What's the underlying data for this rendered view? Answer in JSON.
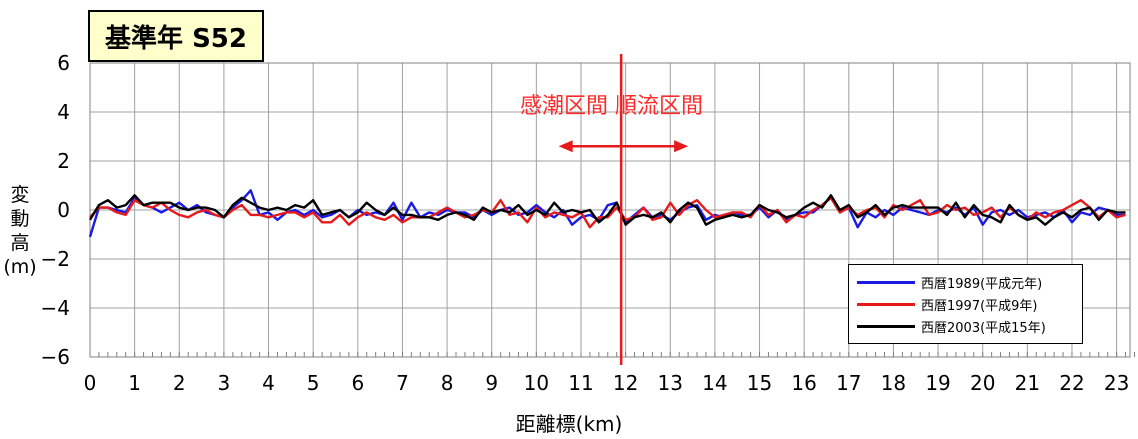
{
  "title": "基準年 S52",
  "annotation": "感潮区間 順流区間",
  "colors": {
    "series1": "#1a1ae6",
    "series2": "#e61a1a",
    "series3": "#000000",
    "divider": "#e61a1a",
    "annotation": "#ff2b2b",
    "title_bg": "#ffffcc"
  },
  "chart_data": {
    "type": "line",
    "title": "基準年 S52",
    "xlabel": "距離標(km)",
    "ylabel": "変動高(m)",
    "ylabel_parts": [
      "変",
      "動",
      "高",
      "(m)"
    ],
    "xlim": [
      0,
      23.3
    ],
    "ylim": [
      -6,
      6
    ],
    "xticks": [
      0,
      1,
      2,
      3,
      4,
      5,
      6,
      7,
      8,
      9,
      10,
      11,
      12,
      13,
      14,
      15,
      16,
      17,
      18,
      19,
      20,
      21,
      22,
      23
    ],
    "yticks": [
      6,
      4,
      2,
      0,
      -2,
      -4,
      -6
    ],
    "ytick_labels": [
      "6",
      "4",
      "2",
      "0",
      "−2",
      "−4",
      "−6"
    ],
    "grid": true,
    "legend_position": "bottom-right",
    "divider_x": 11.9,
    "arrow": {
      "x_from": 10.5,
      "x_to": 13.4,
      "y": 2.6
    },
    "x": [
      0,
      0.2,
      0.4,
      0.6,
      0.8,
      1,
      1.2,
      1.4,
      1.6,
      1.8,
      2,
      2.2,
      2.4,
      2.6,
      2.8,
      3,
      3.2,
      3.4,
      3.6,
      3.8,
      4,
      4.2,
      4.4,
      4.6,
      4.8,
      5,
      5.2,
      5.4,
      5.6,
      5.8,
      6,
      6.2,
      6.4,
      6.6,
      6.8,
      7,
      7.2,
      7.4,
      7.6,
      7.8,
      8,
      8.2,
      8.4,
      8.6,
      8.8,
      9,
      9.2,
      9.4,
      9.6,
      9.8,
      10,
      10.2,
      10.4,
      10.6,
      10.8,
      11,
      11.2,
      11.4,
      11.6,
      11.8,
      12,
      12.2,
      12.4,
      12.6,
      12.8,
      13,
      13.2,
      13.4,
      13.6,
      13.8,
      14,
      14.2,
      14.4,
      14.6,
      14.8,
      15,
      15.2,
      15.4,
      15.6,
      15.8,
      16,
      16.2,
      16.4,
      16.6,
      16.8,
      17,
      17.2,
      17.4,
      17.6,
      17.8,
      18,
      18.2,
      18.4,
      18.6,
      18.8,
      19,
      19.2,
      19.4,
      19.6,
      19.8,
      20,
      20.2,
      20.4,
      20.6,
      20.8,
      21,
      21.2,
      21.4,
      21.6,
      21.8,
      22,
      22.2,
      22.4,
      22.6,
      22.8,
      23,
      23.2
    ],
    "series": [
      {
        "name": "西暦1989(平成元年)",
        "color": "#1a1ae6",
        "values": [
          -1.1,
          0.1,
          0.1,
          0,
          -0.1,
          0.5,
          0.2,
          0.1,
          -0.1,
          0.1,
          0.3,
          0,
          0.2,
          -0.1,
          -0.2,
          -0.3,
          0.1,
          0.4,
          0.8,
          -0.2,
          -0.1,
          -0.4,
          -0.1,
          0,
          -0.2,
          0,
          -0.3,
          -0.2,
          0,
          -0.3,
          0,
          -0.2,
          -0.1,
          -0.2,
          0.3,
          -0.4,
          0.3,
          -0.3,
          -0.1,
          -0.2,
          0,
          -0.1,
          -0.1,
          -0.3,
          0,
          -0.2,
          0,
          0.1,
          -0.2,
          -0.1,
          0.2,
          -0.1,
          -0.3,
          0,
          -0.6,
          -0.3,
          -0.2,
          -0.4,
          0.2,
          0.3,
          -0.5,
          -0.2,
          0.1,
          -0.3,
          -0.2,
          -0.4,
          -0.1,
          0.1,
          0.2,
          -0.4,
          -0.2,
          -0.3,
          -0.1,
          -0.2,
          -0.2,
          0.1,
          -0.3,
          0,
          -0.4,
          -0.2,
          -0.1,
          -0.1,
          0.2,
          0.5,
          -0.1,
          0.1,
          -0.7,
          -0.1,
          -0.3,
          0,
          -0.2,
          0.1,
          0,
          -0.1,
          -0.2,
          0,
          -0.1,
          0.1,
          -0.2,
          0.1,
          -0.6,
          -0.1,
          0,
          -0.2,
          0,
          -0.3,
          -0.2,
          -0.1,
          -0.3,
          0,
          -0.5,
          -0.1,
          -0.2,
          0.1,
          0,
          -0.2,
          -0.2
        ]
      },
      {
        "name": "西暦1997(平成9年)",
        "color": "#e61a1a",
        "values": [
          -0.3,
          0.1,
          0.1,
          -0.1,
          -0.2,
          0.4,
          0.2,
          0.1,
          0.3,
          0,
          -0.2,
          -0.3,
          -0.1,
          0,
          -0.2,
          -0.3,
          0,
          0.2,
          -0.2,
          -0.2,
          -0.3,
          -0.2,
          -0.1,
          -0.1,
          -0.3,
          -0.1,
          -0.5,
          -0.5,
          -0.2,
          -0.6,
          -0.3,
          -0.1,
          -0.3,
          -0.4,
          -0.2,
          -0.5,
          -0.3,
          -0.3,
          -0.3,
          -0.1,
          0.1,
          -0.1,
          -0.3,
          -0.2,
          0,
          -0.1,
          0.4,
          -0.2,
          -0.1,
          -0.5,
          0.1,
          -0.3,
          -0.1,
          -0.2,
          -0.3,
          -0.1,
          -0.7,
          -0.3,
          -0.3,
          0.1,
          -0.4,
          -0.3,
          0.1,
          -0.4,
          -0.3,
          0.3,
          -0.2,
          0.2,
          0.4,
          0,
          -0.3,
          -0.2,
          -0.1,
          -0.1,
          -0.3,
          0.2,
          -0.2,
          0,
          -0.5,
          -0.2,
          -0.3,
          0,
          0.2,
          0.5,
          -0.1,
          0.1,
          -0.2,
          0,
          0.1,
          -0.3,
          0.2,
          0,
          0.2,
          0.4,
          -0.2,
          -0.1,
          0.2,
          0,
          0.1,
          -0.2,
          -0.1,
          0.1,
          -0.3,
          0.1,
          -0.2,
          -0.4,
          -0.1,
          -0.3,
          -0.1,
          0,
          0.2,
          0.4,
          0.1,
          -0.3,
          0,
          -0.3,
          -0.2
        ]
      },
      {
        "name": "西暦2003(平成15年)",
        "color": "#000000",
        "values": [
          -0.4,
          0.2,
          0.4,
          0.1,
          0.2,
          0.6,
          0.2,
          0.3,
          0.3,
          0.3,
          0.1,
          0,
          0.1,
          0.1,
          0,
          -0.3,
          0.2,
          0.5,
          0.3,
          0.1,
          0,
          0.1,
          0,
          0.2,
          0.1,
          0.4,
          -0.2,
          -0.1,
          0,
          -0.3,
          -0.1,
          0.3,
          0,
          -0.2,
          0.1,
          -0.2,
          -0.2,
          -0.3,
          -0.3,
          -0.4,
          -0.2,
          -0.1,
          -0.2,
          -0.4,
          0.1,
          -0.1,
          0,
          -0.1,
          0.2,
          -0.2,
          0,
          -0.2,
          0.3,
          -0.1,
          0,
          -0.1,
          0,
          -0.5,
          -0.2,
          0.3,
          -0.6,
          -0.3,
          -0.2,
          -0.3,
          -0.1,
          -0.5,
          0,
          0.3,
          0.1,
          -0.6,
          -0.4,
          -0.3,
          -0.2,
          -0.3,
          -0.2,
          0.2,
          0,
          -0.1,
          -0.3,
          -0.2,
          0.1,
          0.3,
          0.1,
          0.6,
          0,
          0.2,
          -0.3,
          -0.1,
          0.2,
          -0.2,
          0.1,
          0.2,
          0.1,
          0.1,
          0.1,
          0.1,
          -0.2,
          0.3,
          -0.3,
          0.2,
          -0.2,
          -0.3,
          -0.5,
          0.2,
          -0.2,
          -0.4,
          -0.3,
          -0.6,
          -0.3,
          -0.1,
          -0.3,
          0,
          0.1,
          -0.4,
          0,
          -0.1,
          -0.1
        ]
      }
    ]
  }
}
